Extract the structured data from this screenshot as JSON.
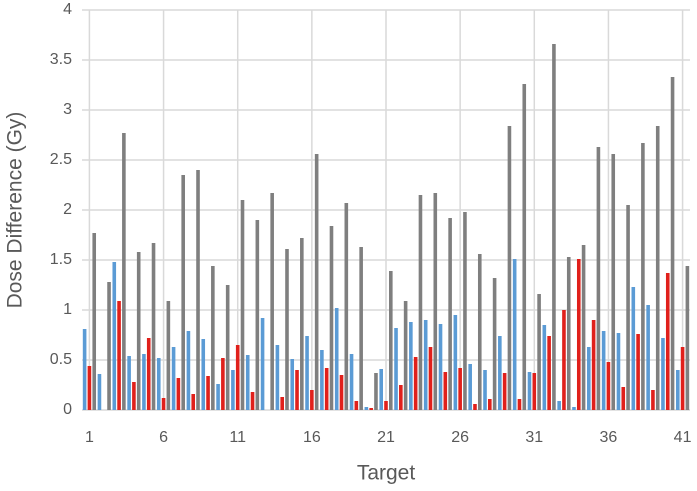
{
  "chart_data": {
    "type": "bar",
    "x_label": "Target",
    "y_label": "Dose Difference (Gy)",
    "categories": [
      "1",
      null,
      null,
      null,
      null,
      "6",
      null,
      null,
      null,
      null,
      "11",
      null,
      null,
      null,
      null,
      "16",
      null,
      null,
      null,
      null,
      "21",
      null,
      null,
      null,
      null,
      "26",
      null,
      null,
      null,
      null,
      "31",
      null,
      null,
      null,
      null,
      "36",
      null,
      null,
      null,
      null,
      "41"
    ],
    "series": [
      {
        "color": "#5b9bd5",
        "values": [
          0.81,
          0.36,
          1.48,
          0.54,
          0.56,
          0.52,
          0.63,
          0.79,
          0.71,
          0.26,
          0.4,
          0.55,
          0.92,
          0.65,
          0.51,
          0.74,
          0.6,
          1.02,
          0.56,
          0.03,
          0.41,
          0.82,
          0.88,
          0.9,
          0.86,
          0.95,
          0.46,
          0.4,
          0.74,
          1.51,
          0.38,
          0.85,
          0.09,
          0.03,
          0.63,
          0.79,
          0.77,
          1.23,
          1.05,
          0.72,
          0.4
        ]
      },
      {
        "color": "#e0201b",
        "values": [
          0.44,
          0,
          1.09,
          0.28,
          0.72,
          0.12,
          0.32,
          0.16,
          0.34,
          0.52,
          0.65,
          0.18,
          0,
          0.13,
          0.4,
          0.2,
          0.42,
          0.35,
          0.09,
          0.02,
          0.09,
          0.25,
          0.53,
          0.63,
          0.38,
          0.42,
          0.06,
          0.11,
          0.37,
          0.11,
          0.37,
          0.74,
          1.0,
          1.51,
          0.9,
          0.48,
          0.23,
          0.76,
          0.2,
          1.37,
          0.63
        ]
      },
      {
        "color": "#7f7f7f",
        "values": [
          1.77,
          1.28,
          2.77,
          1.58,
          1.67,
          1.09,
          2.35,
          2.4,
          1.44,
          1.25,
          2.1,
          1.9,
          2.17,
          1.61,
          1.72,
          2.56,
          1.84,
          2.07,
          1.63,
          0.37,
          1.39,
          1.09,
          2.15,
          2.17,
          1.92,
          1.98,
          1.56,
          1.32,
          2.84,
          3.26,
          1.16,
          3.66,
          1.53,
          1.65,
          2.63,
          2.56,
          2.05,
          2.67,
          2.84,
          3.33,
          1.44
        ]
      }
    ],
    "ylim": [
      0,
      4
    ],
    "yticks": [
      0,
      0.5,
      1,
      1.5,
      2,
      2.5,
      3,
      3.5,
      4
    ],
    "grid": true
  }
}
